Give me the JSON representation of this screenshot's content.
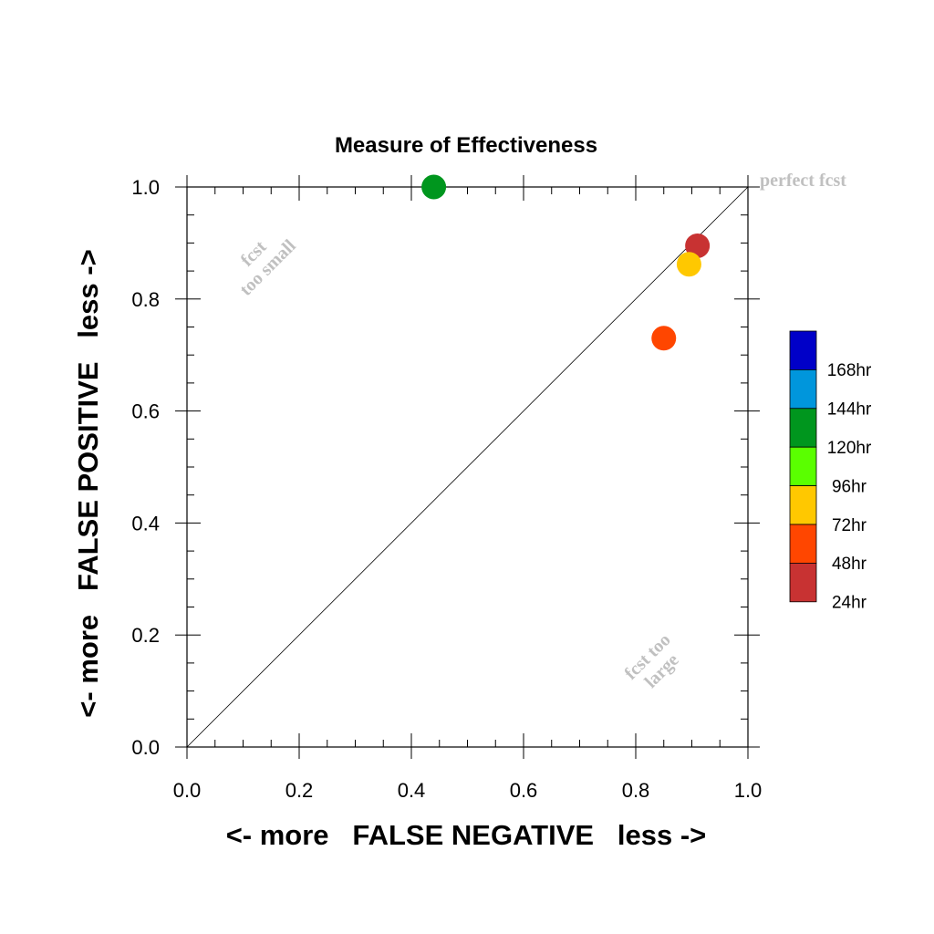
{
  "chart_data": {
    "type": "scatter",
    "title": "Measure of Effectiveness",
    "xlabel": "<- more   FALSE NEGATIVE   less ->",
    "ylabel": "<- more   FALSE POSITIVE   less ->",
    "xlim": [
      0.0,
      1.0
    ],
    "ylim": [
      0.0,
      1.0
    ],
    "xticks": [
      "0.0",
      "0.2",
      "0.4",
      "0.6",
      "0.8",
      "1.0"
    ],
    "yticks": [
      "0.0",
      "0.2",
      "0.4",
      "0.6",
      "0.8",
      "1.0"
    ],
    "grid": false,
    "reference_line": "diagonal",
    "annotations": {
      "perfect": "perfect fcst",
      "too_small_1": "fcst",
      "too_small_2": "too small",
      "too_large_1": "fcst too",
      "too_large_2": "large"
    },
    "legend": {
      "placement": "right",
      "entries": [
        {
          "label": "168hr",
          "color": "#0000c8"
        },
        {
          "label": "144hr",
          "color": "#0096dc"
        },
        {
          "label": "120hr",
          "color": "#00961e"
        },
        {
          "label": "96hr",
          "color": "#5aff00"
        },
        {
          "label": "72hr",
          "color": "#ffc800"
        },
        {
          "label": "48hr",
          "color": "#ff4600"
        },
        {
          "label": "24hr",
          "color": "#c83232"
        }
      ]
    },
    "points": [
      {
        "series": "120hr",
        "x": 0.44,
        "y": 1.0,
        "color": "#00961e"
      },
      {
        "series": "24hr",
        "x": 0.91,
        "y": 0.895,
        "color": "#c83232"
      },
      {
        "series": "72hr",
        "x": 0.895,
        "y": 0.862,
        "color": "#ffc800"
      },
      {
        "series": "48hr",
        "x": 0.85,
        "y": 0.73,
        "color": "#ff4600"
      }
    ]
  }
}
